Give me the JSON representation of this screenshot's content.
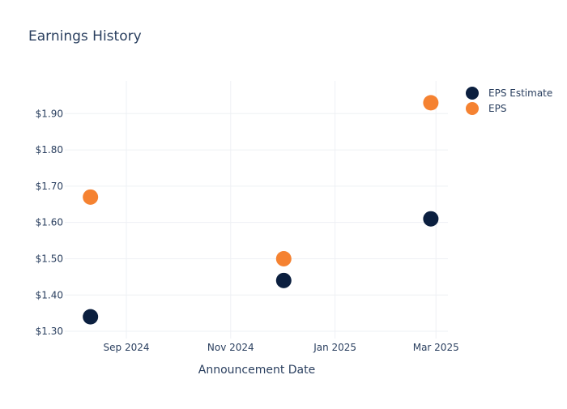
{
  "chart_data": {
    "type": "scatter",
    "title": "Earnings History",
    "xlabel": "Announcement Date",
    "ylabel": "",
    "x_ticks": [
      {
        "date": "2024-09-01",
        "label": "Sep 2024"
      },
      {
        "date": "2024-11-01",
        "label": "Nov 2024"
      },
      {
        "date": "2025-01-01",
        "label": "Jan 2025"
      },
      {
        "date": "2025-03-01",
        "label": "Mar 2025"
      }
    ],
    "y_ticks": [
      {
        "value": 1.3,
        "label": "$1.30"
      },
      {
        "value": 1.4,
        "label": "$1.40"
      },
      {
        "value": 1.5,
        "label": "$1.50"
      },
      {
        "value": 1.6,
        "label": "$1.60"
      },
      {
        "value": 1.7,
        "label": "$1.70"
      },
      {
        "value": 1.8,
        "label": "$1.80"
      },
      {
        "value": 1.9,
        "label": "$1.90"
      }
    ],
    "xlim": [
      "2024-07-27",
      "2025-03-08"
    ],
    "ylim": [
      1.28,
      1.99
    ],
    "grid": true,
    "legend_position": "top-right",
    "series": [
      {
        "name": "EPS Estimate",
        "color": "#0b1f3f",
        "points": [
          {
            "x": "2024-08-11",
            "y": 1.34
          },
          {
            "x": "2024-12-02",
            "y": 1.44
          },
          {
            "x": "2025-02-26",
            "y": 1.61
          }
        ]
      },
      {
        "name": "EPS",
        "color": "#f58231",
        "points": [
          {
            "x": "2024-08-11",
            "y": 1.67
          },
          {
            "x": "2024-12-02",
            "y": 1.5
          },
          {
            "x": "2025-02-26",
            "y": 1.93
          }
        ]
      }
    ]
  },
  "colors": {
    "grid": "#eef0f4",
    "text": "#2a3f5f"
  }
}
